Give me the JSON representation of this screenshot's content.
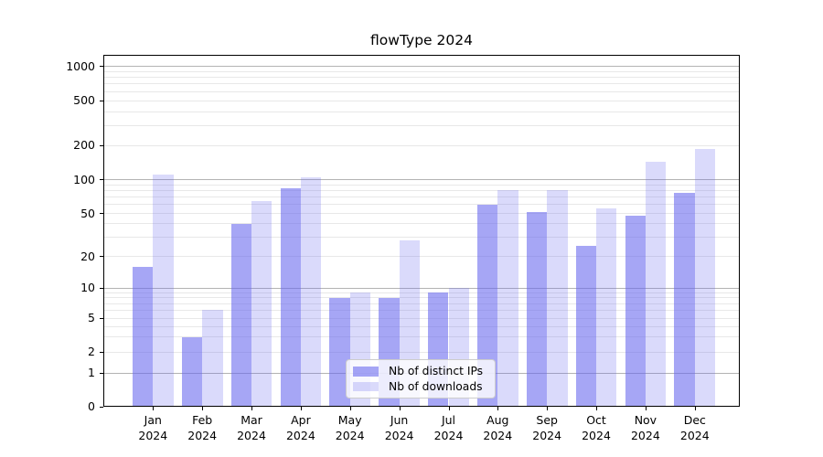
{
  "chart_data": {
    "type": "bar",
    "title": "flowType 2024",
    "categories": [
      "Jan 2024",
      "Feb 2024",
      "Mar 2024",
      "Apr 2024",
      "May 2024",
      "Jun 2024",
      "Jul 2024",
      "Aug 2024",
      "Sep 2024",
      "Oct 2024",
      "Nov 2024",
      "Dec 2024"
    ],
    "x": {
      "months": [
        "Jan",
        "Feb",
        "Mar",
        "Apr",
        "May",
        "Jun",
        "Jul",
        "Aug",
        "Sep",
        "Oct",
        "Nov",
        "Dec"
      ],
      "year": "2024"
    },
    "series": [
      {
        "name": "Nb of distinct IPs",
        "color": "rgba(102,102,238,0.58)",
        "values": [
          16,
          3,
          40,
          84,
          8,
          8,
          9,
          60,
          51,
          25,
          48,
          76
        ]
      },
      {
        "name": "Nb of downloads",
        "color": "rgba(102,102,238,0.24)",
        "values": [
          110,
          6,
          65,
          105,
          9,
          28,
          10,
          80,
          80,
          55,
          145,
          186
        ]
      }
    ],
    "y_axis": {
      "scale": "pseudo-log",
      "ticks": [
        0,
        1,
        2,
        5,
        10,
        20,
        50,
        100,
        200,
        500,
        1000
      ],
      "tick_labels": [
        "0",
        "1",
        "2",
        "5",
        "10",
        "20",
        "50",
        "100",
        "200",
        "500",
        "1000"
      ],
      "major_gridlines": [
        1,
        10,
        100,
        1000
      ],
      "minor_gridline_subs": [
        2,
        3,
        4,
        5,
        6,
        7,
        8,
        9
      ],
      "range": [
        0,
        1230
      ]
    },
    "legend": {
      "location": "lower center",
      "entries": [
        "Nb of distinct IPs",
        "Nb of downloads"
      ]
    },
    "grid": true
  },
  "colors": {
    "bar_base": "#6666ee",
    "series_distinct_ips": "rgba(102,102,238,0.58)",
    "series_downloads": "rgba(102,102,238,0.24)",
    "grid_major": "#b3b3b3",
    "grid_minor": "#e8e8e8",
    "axis": "#000000",
    "legend_border": "#cccccc",
    "background": "#ffffff"
  }
}
